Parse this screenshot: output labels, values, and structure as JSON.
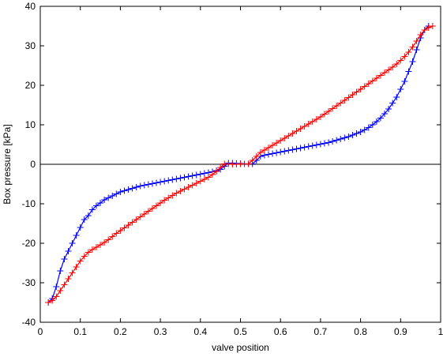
{
  "chart_data": {
    "type": "line",
    "title": "",
    "xlabel": "valve position",
    "ylabel": "Box pressure [kPa]",
    "xlim": [
      0,
      1
    ],
    "ylim": [
      -40,
      40
    ],
    "xticks": [
      "0",
      "0.1",
      "0.2",
      "0.3",
      "0.4",
      "0.5",
      "0.6",
      "0.7",
      "0.8",
      "0.9",
      "1"
    ],
    "yticks": [
      "-40",
      "-30",
      "-20",
      "-10",
      "0",
      "10",
      "20",
      "30",
      "40"
    ],
    "grid": false,
    "legend": false,
    "zero_line": true,
    "marker": "+",
    "series": [
      {
        "color": "#0000ff",
        "x": [
          0.02,
          0.03,
          0.04,
          0.05,
          0.06,
          0.07,
          0.08,
          0.09,
          0.1,
          0.11,
          0.12,
          0.13,
          0.14,
          0.15,
          0.16,
          0.17,
          0.18,
          0.19,
          0.2,
          0.21,
          0.22,
          0.23,
          0.24,
          0.25,
          0.26,
          0.27,
          0.28,
          0.29,
          0.3,
          0.31,
          0.32,
          0.33,
          0.34,
          0.35,
          0.36,
          0.37,
          0.38,
          0.39,
          0.4,
          0.41,
          0.42,
          0.43,
          0.44,
          0.45,
          0.46,
          0.47,
          0.48,
          0.49,
          0.5,
          0.51,
          0.52,
          0.53,
          0.54,
          0.55,
          0.56,
          0.57,
          0.58,
          0.59,
          0.6,
          0.61,
          0.62,
          0.63,
          0.64,
          0.65,
          0.66,
          0.67,
          0.68,
          0.69,
          0.7,
          0.71,
          0.72,
          0.73,
          0.74,
          0.75,
          0.76,
          0.77,
          0.78,
          0.79,
          0.8,
          0.81,
          0.82,
          0.83,
          0.84,
          0.85,
          0.86,
          0.87,
          0.88,
          0.89,
          0.9,
          0.91,
          0.92,
          0.93,
          0.94,
          0.95,
          0.96,
          0.97
        ],
        "y": [
          -35,
          -34,
          -31,
          -27,
          -24,
          -22,
          -20,
          -18,
          -16,
          -14,
          -13,
          -11.5,
          -10.5,
          -9.8,
          -9,
          -8.5,
          -8,
          -7.5,
          -7,
          -6.7,
          -6.4,
          -6.1,
          -5.8,
          -5.5,
          -5.3,
          -5.1,
          -4.9,
          -4.7,
          -4.5,
          -4.3,
          -4.1,
          -3.9,
          -3.7,
          -3.5,
          -3.3,
          -3.1,
          -2.9,
          -2.7,
          -2.5,
          -2.3,
          -2.1,
          -1.9,
          -1.6,
          -1.3,
          -0.5,
          0.3,
          0.3,
          0.2,
          0.2,
          0.1,
          0.1,
          0.1,
          1,
          2,
          2.3,
          2.5,
          2.7,
          2.9,
          3.1,
          3.3,
          3.5,
          3.7,
          3.9,
          4.1,
          4.3,
          4.5,
          4.7,
          4.9,
          5.1,
          5.3,
          5.5,
          5.8,
          6.1,
          6.4,
          6.7,
          7,
          7.4,
          7.8,
          8.2,
          8.7,
          9.3,
          10,
          10.8,
          11.7,
          12.8,
          14,
          15.5,
          17,
          19,
          21,
          23.5,
          26,
          29,
          32,
          34,
          35
        ]
      },
      {
        "color": "#ff0000",
        "x": [
          0.02,
          0.03,
          0.04,
          0.05,
          0.06,
          0.07,
          0.08,
          0.09,
          0.1,
          0.11,
          0.12,
          0.13,
          0.14,
          0.15,
          0.16,
          0.17,
          0.18,
          0.19,
          0.2,
          0.21,
          0.22,
          0.23,
          0.24,
          0.25,
          0.26,
          0.27,
          0.28,
          0.29,
          0.3,
          0.31,
          0.32,
          0.33,
          0.34,
          0.35,
          0.36,
          0.37,
          0.38,
          0.39,
          0.4,
          0.41,
          0.42,
          0.43,
          0.44,
          0.45,
          0.46,
          0.47,
          0.48,
          0.49,
          0.5,
          0.51,
          0.52,
          0.53,
          0.54,
          0.55,
          0.56,
          0.57,
          0.58,
          0.59,
          0.6,
          0.61,
          0.62,
          0.63,
          0.64,
          0.65,
          0.66,
          0.67,
          0.68,
          0.69,
          0.7,
          0.71,
          0.72,
          0.73,
          0.74,
          0.75,
          0.76,
          0.77,
          0.78,
          0.79,
          0.8,
          0.81,
          0.82,
          0.83,
          0.84,
          0.85,
          0.86,
          0.87,
          0.88,
          0.89,
          0.9,
          0.91,
          0.92,
          0.93,
          0.94,
          0.95,
          0.96,
          0.97,
          0.98
        ],
        "y": [
          -35,
          -34.5,
          -33.5,
          -32,
          -30.5,
          -29,
          -27.5,
          -26,
          -24.5,
          -23.3,
          -22.3,
          -21.6,
          -21,
          -20.4,
          -19.8,
          -19.1,
          -18.3,
          -17.5,
          -16.8,
          -16.1,
          -15.4,
          -14.7,
          -14,
          -13.3,
          -12.6,
          -11.9,
          -11.2,
          -10.5,
          -9.8,
          -9.1,
          -8.5,
          -7.9,
          -7.3,
          -6.8,
          -6.3,
          -5.8,
          -5.3,
          -4.8,
          -4.3,
          -3.8,
          -3.3,
          -2.6,
          -1.8,
          -0.8,
          0.1,
          0.1,
          0,
          0,
          0.1,
          0.1,
          0.1,
          1,
          2,
          3,
          3.6,
          4.2,
          4.8,
          5.4,
          6,
          6.6,
          7.2,
          7.8,
          8.4,
          9,
          9.6,
          10.2,
          10.8,
          11.4,
          12,
          12.7,
          13.4,
          14.1,
          14.8,
          15.5,
          16.2,
          16.9,
          17.6,
          18.3,
          19,
          19.7,
          20.4,
          21.1,
          21.8,
          22.5,
          23.2,
          23.9,
          24.6,
          25.4,
          26.3,
          27.3,
          28.4,
          29.7,
          31.2,
          32.8,
          34,
          34.6,
          35
        ]
      }
    ]
  }
}
